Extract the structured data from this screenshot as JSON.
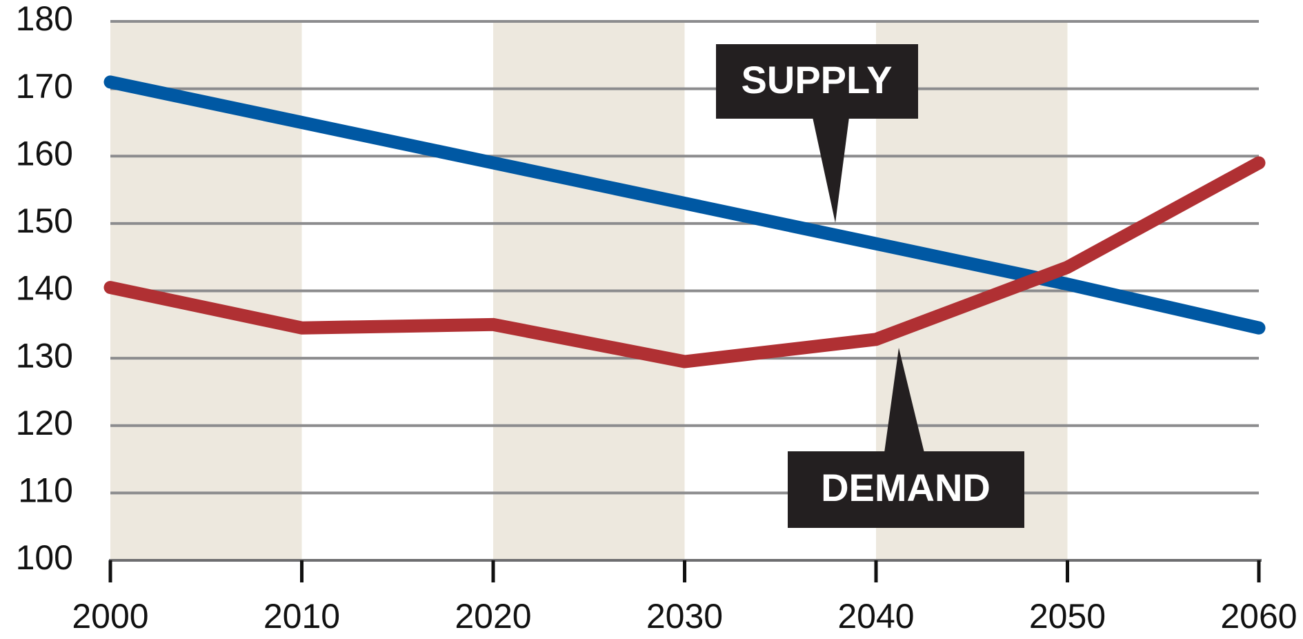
{
  "chart_data": {
    "type": "line",
    "x": [
      2000,
      2010,
      2020,
      2030,
      2040,
      2050,
      2060
    ],
    "series": [
      {
        "name": "SUPPLY",
        "color": "#0058a3",
        "values": [
          171,
          165,
          159,
          153,
          147,
          141,
          134.5
        ]
      },
      {
        "name": "DEMAND",
        "color": "#b03033",
        "values": [
          140.5,
          134.5,
          135,
          129.5,
          132.8,
          143.5,
          159
        ]
      }
    ],
    "xlim": [
      2000,
      2060
    ],
    "xticks": [
      2000,
      2010,
      2020,
      2030,
      2040,
      2050,
      2060
    ],
    "ylim": [
      100,
      180
    ],
    "yticks": [
      100,
      110,
      120,
      130,
      140,
      150,
      160,
      170,
      180
    ],
    "grid": true,
    "band_color": "#ede8de"
  }
}
